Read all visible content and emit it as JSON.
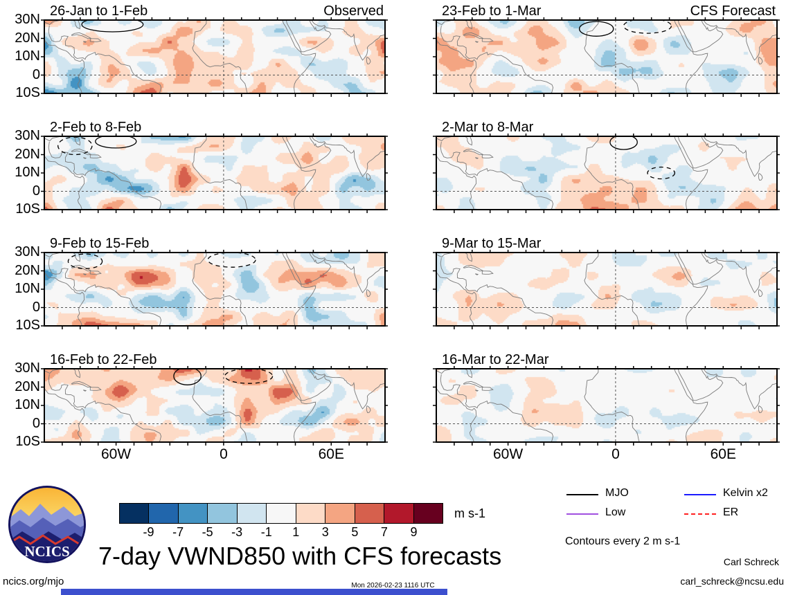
{
  "title": "7-day VWND850 with CFS forecasts",
  "logo": {
    "label": "NCICS"
  },
  "chart_data": {
    "type": "heatmap",
    "title": "7-day VWND850 with CFS forecasts",
    "units": "m s-1",
    "columns": [
      "Observed",
      "CFS Forecast"
    ],
    "panels": [
      {
        "column": "Observed",
        "period": "26-Jan to 1-Feb"
      },
      {
        "column": "Observed",
        "period": "2-Feb to 8-Feb"
      },
      {
        "column": "Observed",
        "period": "9-Feb to 15-Feb"
      },
      {
        "column": "Observed",
        "period": "16-Feb to 22-Feb"
      },
      {
        "column": "CFS Forecast",
        "period": "23-Feb to 1-Mar"
      },
      {
        "column": "CFS Forecast",
        "period": "2-Mar to 8-Mar"
      },
      {
        "column": "CFS Forecast",
        "period": "9-Mar to 15-Mar"
      },
      {
        "column": "CFS Forecast",
        "period": "16-Mar to 22-Mar"
      }
    ],
    "x_tick_labels": [
      "60W",
      "0",
      "60E"
    ],
    "y_tick_labels": [
      "30N",
      "20N",
      "10N",
      "0",
      "10S"
    ],
    "colorbar": {
      "levels": [
        -9,
        -7,
        -5,
        -3,
        -1,
        1,
        3,
        5,
        7,
        9
      ],
      "colors": [
        "#053061",
        "#2166ac",
        "#4393c3",
        "#92c5de",
        "#d1e5f0",
        "#f7f7f7",
        "#fddbc7",
        "#f4a582",
        "#d6604d",
        "#b2182b",
        "#67001f"
      ],
      "units": "m s-1"
    },
    "contour_note": "Contours every 2 m s-1"
  },
  "legend": {
    "items": [
      {
        "label": "MJO",
        "color": "#000000",
        "style": "solid"
      },
      {
        "label": "Kelvin x2",
        "color": "#1a1aff",
        "style": "solid"
      },
      {
        "label": "Low",
        "color": "#a050e0",
        "style": "solid"
      },
      {
        "label": "ER",
        "color": "#ff2020",
        "style": "dashed"
      }
    ],
    "note": "Contours every 2 m s-1"
  },
  "footer": {
    "site": "ncics.org/mjo",
    "timestamp": "Mon 2026-02-23 1116 UTC",
    "author": "Carl Schreck",
    "email": "carl_schreck@ncsu.edu"
  }
}
